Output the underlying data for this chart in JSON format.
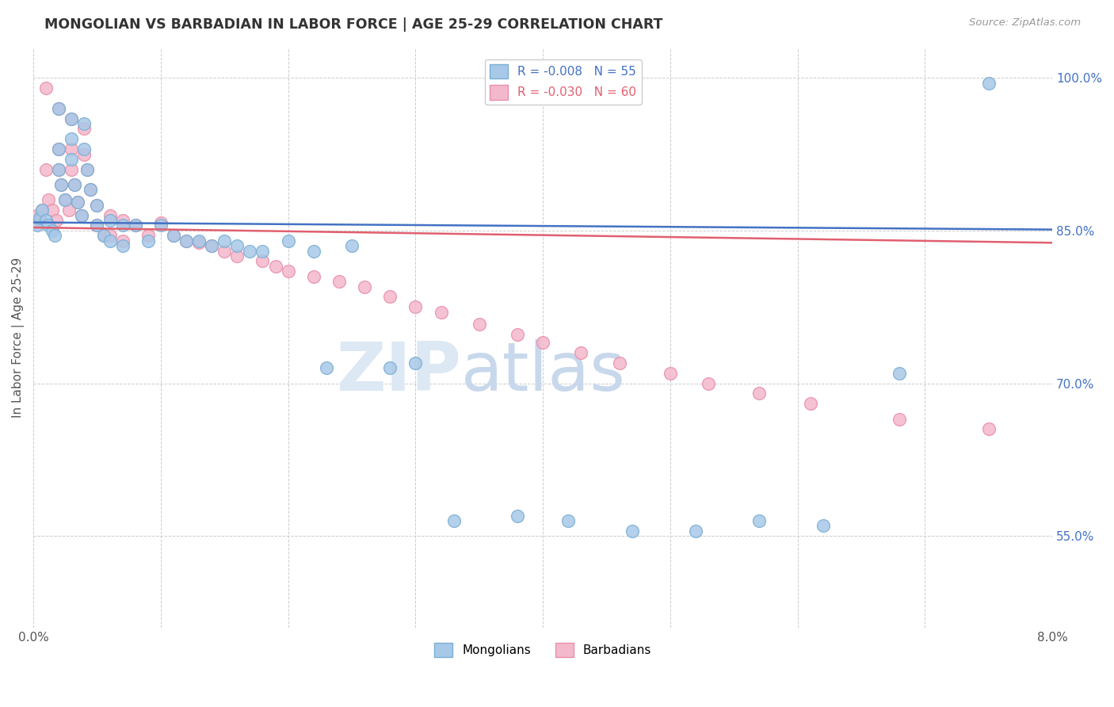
{
  "title": "MONGOLIAN VS BARBADIAN IN LABOR FORCE | AGE 25-29 CORRELATION CHART",
  "source_text": "Source: ZipAtlas.com",
  "ylabel": "In Labor Force | Age 25-29",
  "xlim": [
    0.0,
    0.08
  ],
  "ylim": [
    0.46,
    1.03
  ],
  "xticks": [
    0.0,
    0.01,
    0.02,
    0.03,
    0.04,
    0.05,
    0.06,
    0.07,
    0.08
  ],
  "xtick_labels": [
    "0.0%",
    "",
    "",
    "",
    "",
    "",
    "",
    "",
    "8.0%"
  ],
  "ytick_positions": [
    0.55,
    0.7,
    0.85,
    1.0
  ],
  "ytick_labels": [
    "55.0%",
    "70.0%",
    "85.0%",
    "100.0%"
  ],
  "mongolian_color": "#a8c8e8",
  "barbadian_color": "#f4b8cc",
  "mongolian_edge": "#7aafd4",
  "barbadian_edge": "#e890a8",
  "trend_mongolian_color": "#4472c4",
  "trend_barbadian_color": "#e06070",
  "trend_mongolian_y0": 0.858,
  "trend_mongolian_y1": 0.851,
  "trend_barbadian_y0": 0.853,
  "trend_barbadian_y1": 0.838,
  "R_mongolian": -0.008,
  "N_mongolian": 55,
  "R_barbadian": -0.03,
  "N_barbadian": 60,
  "legend_mongolian": "Mongolians",
  "legend_barbadian": "Barbadians",
  "watermark_zip": "ZIP",
  "watermark_atlas": "atlas",
  "mongolian_x": [
    0.0003,
    0.0005,
    0.0007,
    0.001,
    0.0012,
    0.0015,
    0.0017,
    0.002,
    0.002,
    0.002,
    0.0022,
    0.0025,
    0.003,
    0.003,
    0.003,
    0.0032,
    0.0035,
    0.0038,
    0.004,
    0.004,
    0.0042,
    0.0045,
    0.005,
    0.005,
    0.0055,
    0.006,
    0.006,
    0.007,
    0.007,
    0.008,
    0.009,
    0.01,
    0.011,
    0.012,
    0.013,
    0.014,
    0.015,
    0.016,
    0.017,
    0.018,
    0.02,
    0.022,
    0.023,
    0.025,
    0.028,
    0.03,
    0.033,
    0.038,
    0.042,
    0.047,
    0.052,
    0.057,
    0.062,
    0.068,
    0.075
  ],
  "mongolian_y": [
    0.855,
    0.862,
    0.87,
    0.86,
    0.855,
    0.85,
    0.845,
    0.97,
    0.93,
    0.91,
    0.895,
    0.88,
    0.96,
    0.94,
    0.92,
    0.895,
    0.878,
    0.865,
    0.955,
    0.93,
    0.91,
    0.89,
    0.875,
    0.855,
    0.845,
    0.86,
    0.84,
    0.855,
    0.835,
    0.855,
    0.84,
    0.855,
    0.845,
    0.84,
    0.84,
    0.835,
    0.84,
    0.835,
    0.83,
    0.83,
    0.84,
    0.83,
    0.715,
    0.835,
    0.715,
    0.72,
    0.565,
    0.57,
    0.565,
    0.555,
    0.555,
    0.565,
    0.56,
    0.71,
    0.995
  ],
  "barbadian_x": [
    0.0003,
    0.0005,
    0.0007,
    0.001,
    0.001,
    0.0012,
    0.0015,
    0.0018,
    0.002,
    0.002,
    0.002,
    0.0022,
    0.0025,
    0.0028,
    0.003,
    0.003,
    0.003,
    0.0032,
    0.0035,
    0.0038,
    0.004,
    0.004,
    0.0042,
    0.0045,
    0.005,
    0.005,
    0.0055,
    0.006,
    0.006,
    0.007,
    0.007,
    0.008,
    0.009,
    0.01,
    0.011,
    0.012,
    0.013,
    0.014,
    0.015,
    0.016,
    0.018,
    0.019,
    0.02,
    0.022,
    0.024,
    0.026,
    0.028,
    0.03,
    0.032,
    0.035,
    0.038,
    0.04,
    0.043,
    0.046,
    0.05,
    0.053,
    0.057,
    0.061,
    0.068,
    0.075
  ],
  "barbadian_y": [
    0.865,
    0.86,
    0.87,
    0.99,
    0.91,
    0.88,
    0.87,
    0.86,
    0.97,
    0.93,
    0.91,
    0.895,
    0.88,
    0.87,
    0.96,
    0.93,
    0.91,
    0.895,
    0.878,
    0.865,
    0.95,
    0.925,
    0.91,
    0.89,
    0.875,
    0.855,
    0.845,
    0.865,
    0.845,
    0.86,
    0.84,
    0.855,
    0.845,
    0.858,
    0.845,
    0.84,
    0.838,
    0.835,
    0.83,
    0.825,
    0.82,
    0.815,
    0.81,
    0.805,
    0.8,
    0.795,
    0.785,
    0.775,
    0.77,
    0.758,
    0.748,
    0.74,
    0.73,
    0.72,
    0.71,
    0.7,
    0.69,
    0.68,
    0.665,
    0.655
  ]
}
